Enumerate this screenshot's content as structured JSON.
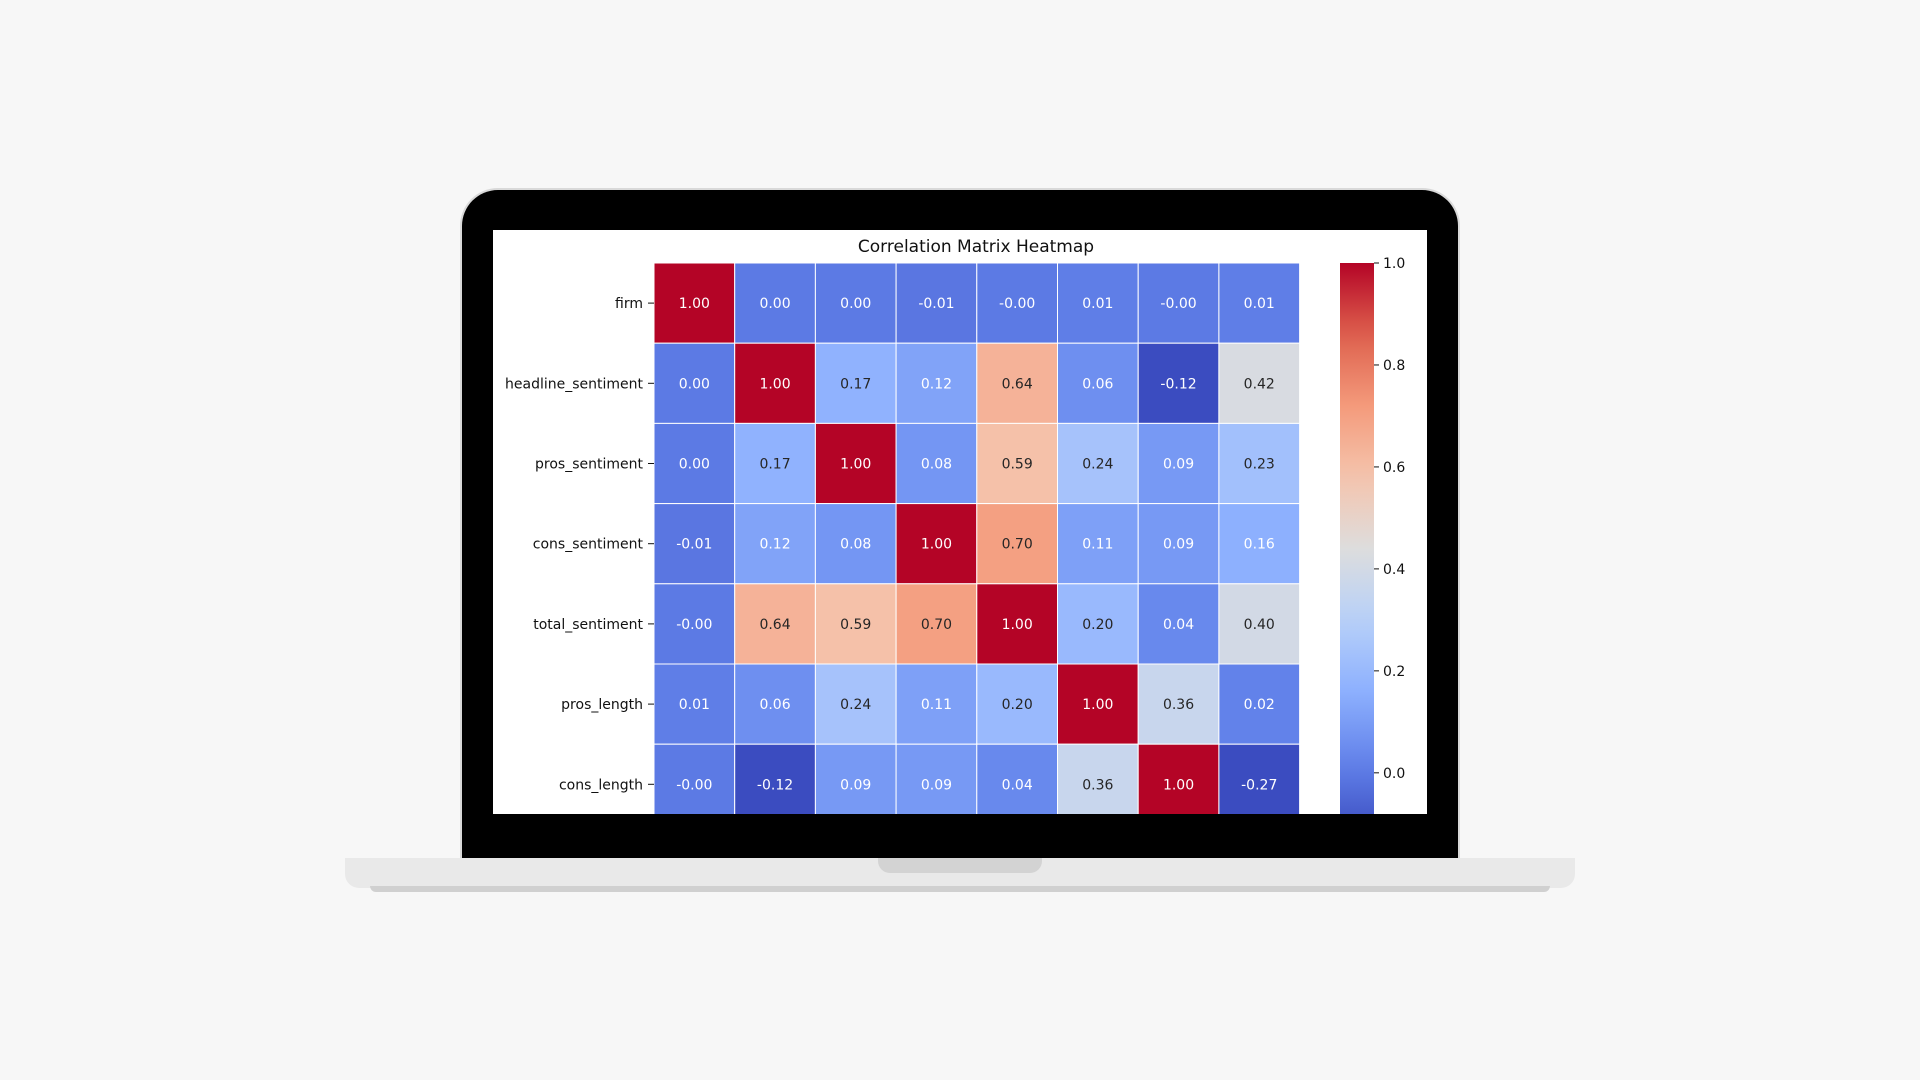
{
  "chart_data": {
    "type": "heatmap",
    "title": "Correlation Matrix Heatmap",
    "row_labels": [
      "firm",
      "headline_sentiment",
      "pros_sentiment",
      "cons_sentiment",
      "total_sentiment",
      "pros_length",
      "cons_length"
    ],
    "values": [
      [
        1.0,
        0.0,
        0.0,
        -0.01,
        -0.0,
        0.01,
        -0.0,
        0.01
      ],
      [
        0.0,
        1.0,
        0.17,
        0.12,
        0.64,
        0.06,
        -0.12,
        0.42
      ],
      [
        0.0,
        0.17,
        1.0,
        0.08,
        0.59,
        0.24,
        0.09,
        0.23
      ],
      [
        -0.01,
        0.12,
        0.08,
        1.0,
        0.7,
        0.11,
        0.09,
        0.16
      ],
      [
        -0.0,
        0.64,
        0.59,
        0.7,
        1.0,
        0.2,
        0.04,
        0.4
      ],
      [
        0.01,
        0.06,
        0.24,
        0.11,
        0.2,
        1.0,
        0.36,
        0.02
      ],
      [
        -0.0,
        -0.12,
        0.09,
        0.09,
        0.04,
        0.36,
        1.0,
        -0.27
      ]
    ],
    "cell_labels": [
      [
        "1.00",
        "0.00",
        "0.00",
        "-0.01",
        "-0.00",
        "0.01",
        "-0.00",
        "0.01"
      ],
      [
        "0.00",
        "1.00",
        "0.17",
        "0.12",
        "0.64",
        "0.06",
        "-0.12",
        "0.42"
      ],
      [
        "0.00",
        "0.17",
        "1.00",
        "0.08",
        "0.59",
        "0.24",
        "0.09",
        "0.23"
      ],
      [
        "-0.01",
        "0.12",
        "0.08",
        "1.00",
        "0.70",
        "0.11",
        "0.09",
        "0.16"
      ],
      [
        "-0.00",
        "0.64",
        "0.59",
        "0.70",
        "1.00",
        "0.20",
        "0.04",
        "0.40"
      ],
      [
        "0.01",
        "0.06",
        "0.24",
        "0.11",
        "0.20",
        "1.00",
        "0.36",
        "0.02"
      ],
      [
        "-0.00",
        "-0.12",
        "0.09",
        "0.09",
        "0.04",
        "0.36",
        "1.00",
        "-0.27"
      ]
    ],
    "colormap": "coolwarm",
    "colorbar": {
      "ticks": [
        1.0,
        0.8,
        0.6,
        0.4,
        0.2,
        0.0
      ],
      "tick_labels": [
        "1.0",
        "0.8",
        "0.6",
        "0.4",
        "0.2",
        "0.0"
      ],
      "range": [
        -0.12,
        1.0
      ]
    },
    "grid": false
  }
}
